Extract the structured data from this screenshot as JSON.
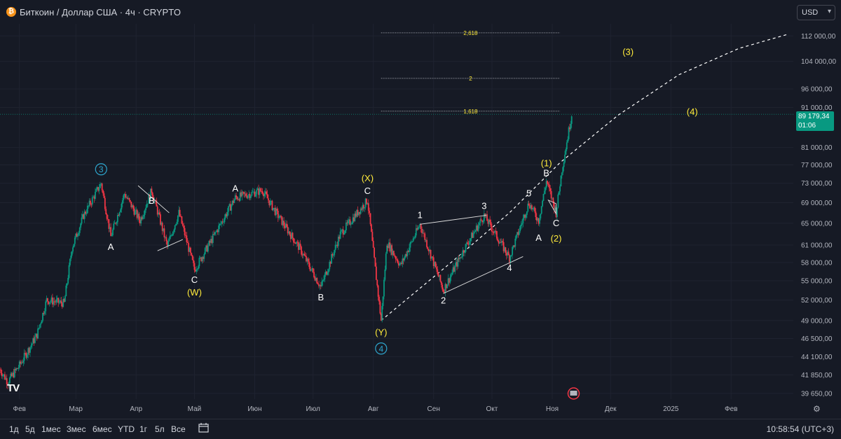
{
  "header": {
    "title": "Биткоин / Доллар США · 4ч · CRYPTO",
    "currency": "USD"
  },
  "price_tag": {
    "price": "89 179,34",
    "countdown": "01:06"
  },
  "footer": {
    "timeframes": [
      "1д",
      "5д",
      "1мес",
      "3мес",
      "6мес",
      "YTD",
      "1г",
      "5л",
      "Все"
    ],
    "clock": "10:58:54 (UTC+3)"
  },
  "colors": {
    "background": "#161a25",
    "up": "#089981",
    "down": "#f23645",
    "wave_label": "#ffeb3b",
    "fib_label": "#ffeb3b"
  },
  "chart_data": {
    "type": "candlestick",
    "instrument": "Биткоин / Доллар США",
    "timeframe": "4ч",
    "scale": "log",
    "x_range": [
      "2024-01-22",
      "2025-03-05"
    ],
    "y_range": [
      39000,
      116000
    ],
    "x_ticks": [
      {
        "date": "2024-02-01",
        "label": "Фев"
      },
      {
        "date": "2024-03-01",
        "label": "Мар"
      },
      {
        "date": "2024-04-01",
        "label": "Апр"
      },
      {
        "date": "2024-05-01",
        "label": "Май"
      },
      {
        "date": "2024-06-01",
        "label": "Июн"
      },
      {
        "date": "2024-07-01",
        "label": "Июл"
      },
      {
        "date": "2024-08-01",
        "label": "Авг"
      },
      {
        "date": "2024-09-01",
        "label": "Сен"
      },
      {
        "date": "2024-10-01",
        "label": "Окт"
      },
      {
        "date": "2024-11-01",
        "label": "Ноя"
      },
      {
        "date": "2024-12-01",
        "label": "Дек"
      },
      {
        "date": "2025-01-01",
        "label": "2025"
      },
      {
        "date": "2025-02-01",
        "label": "Фев"
      }
    ],
    "y_ticks": [
      {
        "value": 112000,
        "label": "112 000,00"
      },
      {
        "value": 104000,
        "label": "104 000,00"
      },
      {
        "value": 96000,
        "label": "96 000,00"
      },
      {
        "value": 91000,
        "label": "91 000,00"
      },
      {
        "value": 81000,
        "label": "81 000,00"
      },
      {
        "value": 77000,
        "label": "77 000,00"
      },
      {
        "value": 73000,
        "label": "73 000,00"
      },
      {
        "value": 69000,
        "label": "69 000,00"
      },
      {
        "value": 65000,
        "label": "65 000,00"
      },
      {
        "value": 61000,
        "label": "61 000,00"
      },
      {
        "value": 58000,
        "label": "58 000,00"
      },
      {
        "value": 55000,
        "label": "55 000,00"
      },
      {
        "value": 52000,
        "label": "52 000,00"
      },
      {
        "value": 49000,
        "label": "49 000,00"
      },
      {
        "value": 46500,
        "label": "46 500,00"
      },
      {
        "value": 44100,
        "label": "44 100,00"
      },
      {
        "value": 41850,
        "label": "41 850,00"
      },
      {
        "value": 39650,
        "label": "39 650,00"
      }
    ],
    "last_price": 89179.34,
    "price_path": [
      {
        "date": "2024-01-22",
        "price": 42500
      },
      {
        "date": "2024-01-26",
        "price": 41000
      },
      {
        "date": "2024-02-01",
        "price": 43000
      },
      {
        "date": "2024-02-10",
        "price": 47000
      },
      {
        "date": "2024-02-15",
        "price": 52000
      },
      {
        "date": "2024-02-24",
        "price": 51500
      },
      {
        "date": "2024-02-28",
        "price": 60500
      },
      {
        "date": "2024-03-05",
        "price": 66500
      },
      {
        "date": "2024-03-14",
        "price": 73000
      },
      {
        "date": "2024-03-19",
        "price": 62500
      },
      {
        "date": "2024-03-26",
        "price": 70800
      },
      {
        "date": "2024-04-03",
        "price": 65500
      },
      {
        "date": "2024-04-09",
        "price": 71500
      },
      {
        "date": "2024-04-17",
        "price": 60800
      },
      {
        "date": "2024-04-23",
        "price": 67000
      },
      {
        "date": "2024-05-01",
        "price": 56800
      },
      {
        "date": "2024-05-10",
        "price": 62000
      },
      {
        "date": "2024-05-22",
        "price": 70000
      },
      {
        "date": "2024-06-05",
        "price": 71500
      },
      {
        "date": "2024-06-12",
        "price": 67000
      },
      {
        "date": "2024-06-24",
        "price": 60500
      },
      {
        "date": "2024-07-05",
        "price": 54000
      },
      {
        "date": "2024-07-15",
        "price": 63000
      },
      {
        "date": "2024-07-29",
        "price": 69500
      },
      {
        "date": "2024-08-05",
        "price": 49000
      },
      {
        "date": "2024-08-08",
        "price": 61500
      },
      {
        "date": "2024-08-15",
        "price": 57500
      },
      {
        "date": "2024-08-25",
        "price": 64800
      },
      {
        "date": "2024-09-06",
        "price": 53500
      },
      {
        "date": "2024-09-17",
        "price": 60500
      },
      {
        "date": "2024-09-27",
        "price": 66500
      },
      {
        "date": "2024-10-10",
        "price": 58800
      },
      {
        "date": "2024-10-20",
        "price": 69000
      },
      {
        "date": "2024-10-25",
        "price": 65500
      },
      {
        "date": "2024-10-29",
        "price": 73500
      },
      {
        "date": "2024-11-03",
        "price": 67000
      },
      {
        "date": "2024-11-06",
        "price": 76000
      },
      {
        "date": "2024-11-11",
        "price": 89179
      }
    ],
    "fibonacci_levels": [
      {
        "ratio": "2,618",
        "price": 113000
      },
      {
        "ratio": "2",
        "price": 99000
      },
      {
        "ratio": "1,618",
        "price": 90000
      }
    ],
    "wave_labels": [
      {
        "text": "3",
        "style": "circled",
        "date": "2024-03-14",
        "price": 73000
      },
      {
        "text": "A",
        "style": "white",
        "date": "2024-03-19",
        "price": 62500
      },
      {
        "text": "B",
        "style": "white",
        "date": "2024-04-09",
        "price": 71500
      },
      {
        "text": "C",
        "style": "white",
        "date": "2024-05-01",
        "price": 56800
      },
      {
        "text": "(W)",
        "style": "yellow",
        "date": "2024-05-01",
        "price": 56800
      },
      {
        "text": "A",
        "style": "white",
        "date": "2024-05-22",
        "price": 70000
      },
      {
        "text": "B",
        "style": "white",
        "date": "2024-07-05",
        "price": 54000
      },
      {
        "text": "C",
        "style": "white",
        "date": "2024-07-29",
        "price": 69500
      },
      {
        "text": "(X)",
        "style": "yellow",
        "date": "2024-07-29",
        "price": 69500
      },
      {
        "text": "(Y)",
        "style": "yellow",
        "date": "2024-08-05",
        "price": 49000
      },
      {
        "text": "4",
        "style": "circled",
        "date": "2024-08-05",
        "price": 49000
      },
      {
        "text": "1",
        "style": "white",
        "date": "2024-08-25",
        "price": 64800
      },
      {
        "text": "2",
        "style": "white",
        "date": "2024-09-06",
        "price": 53500
      },
      {
        "text": "3",
        "style": "white",
        "date": "2024-09-27",
        "price": 66500
      },
      {
        "text": "4",
        "style": "white",
        "date": "2024-10-10",
        "price": 58800
      },
      {
        "text": "5",
        "style": "white",
        "date": "2024-10-20",
        "price": 69000
      },
      {
        "text": "A",
        "style": "white",
        "date": "2024-10-25",
        "price": 65500
      },
      {
        "text": "(1)",
        "style": "yellow",
        "date": "2024-10-29",
        "price": 73500
      },
      {
        "text": "B",
        "style": "white",
        "date": "2024-10-29",
        "price": 73500
      },
      {
        "text": "C",
        "style": "white",
        "date": "2024-11-03",
        "price": 67000
      },
      {
        "text": "(2)",
        "style": "yellow",
        "date": "2024-11-03",
        "price": 67000
      },
      {
        "text": "(3)",
        "style": "yellow",
        "date": "2024-12-10",
        "price": 107000
      },
      {
        "text": "(4)",
        "style": "yellow",
        "date": "2025-01-12",
        "price": 90000
      }
    ],
    "projection_curve": [
      {
        "date": "2024-08-05",
        "price": 49000
      },
      {
        "date": "2024-09-10",
        "price": 58000
      },
      {
        "date": "2024-10-10",
        "price": 67000
      },
      {
        "date": "2024-11-05",
        "price": 77500
      },
      {
        "date": "2024-12-05",
        "price": 89000
      },
      {
        "date": "2025-01-05",
        "price": 100000
      },
      {
        "date": "2025-02-05",
        "price": 108000
      },
      {
        "date": "2025-03-02",
        "price": 112500
      }
    ],
    "wave_triangles": [
      [
        {
          "date": "2024-04-02",
          "price": 72500
        },
        {
          "date": "2024-04-18",
          "price": 67000
        },
        {
          "date": "2024-04-12",
          "price": 60000
        },
        {
          "date": "2024-04-25",
          "price": 62000
        }
      ],
      [
        {
          "date": "2024-08-25",
          "price": 64800
        },
        {
          "date": "2024-09-28",
          "price": 66500
        },
        {
          "date": "2024-09-06",
          "price": 53000
        },
        {
          "date": "2024-10-17",
          "price": 59000
        }
      ],
      [
        {
          "date": "2024-10-30",
          "price": 69500
        },
        {
          "date": "2024-11-03",
          "price": 66800
        },
        {
          "date": "2024-11-03",
          "price": 68800
        }
      ]
    ]
  }
}
